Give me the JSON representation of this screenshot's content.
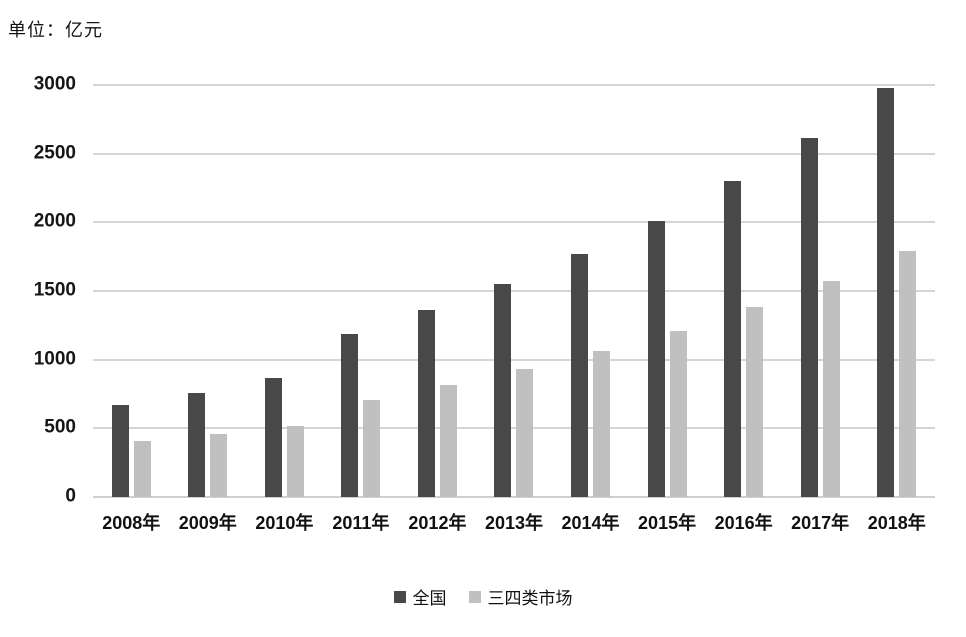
{
  "unit_label": "单位：亿元",
  "chart_data": {
    "type": "bar",
    "title": "",
    "ylabel_unit": "亿元",
    "categories": [
      "2008年",
      "2009年",
      "2010年",
      "2011年",
      "2012年",
      "2013年",
      "2014年",
      "2015年",
      "2016年",
      "2017年",
      "2018年"
    ],
    "series": [
      {
        "key": "national",
        "name": "全国",
        "color": "#484848",
        "values": [
          670,
          760,
          870,
          1190,
          1360,
          1550,
          1770,
          2010,
          2300,
          2615,
          2980
        ]
      },
      {
        "key": "tier-3-4-market",
        "name": "三四类市场",
        "color": "#c0c0c0",
        "values": [
          405,
          460,
          520,
          710,
          815,
          935,
          1060,
          1210,
          1380,
          1570,
          1790
        ]
      }
    ],
    "ylim": [
      0,
      3000
    ],
    "yticks": [
      0,
      500,
      1000,
      1500,
      2000,
      2500,
      3000
    ],
    "grid": "horizontal",
    "gridline_color": "#d5d5d5",
    "axis_line_color": "#cfcfcf",
    "legend_position": "bottom"
  }
}
